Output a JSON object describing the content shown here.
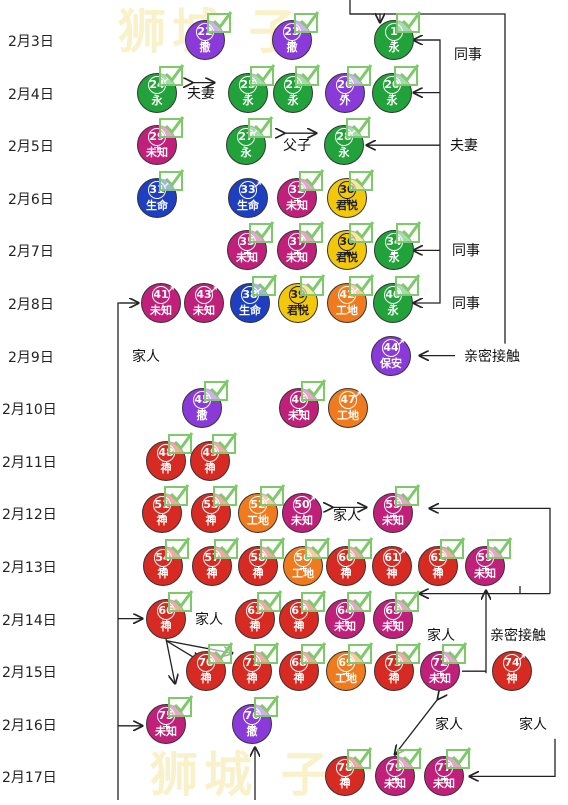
{
  "colors": {
    "green": "#22a23a",
    "purple": "#8a3ad8",
    "magenta": "#c0207a",
    "blue": "#1d3fc0",
    "yellow": "#f3c80a",
    "orange": "#f07a1e",
    "red": "#d62a22",
    "line": "#222222",
    "check": "#7ec96a"
  },
  "watermark": "狮城  子",
  "dates": [
    "2月3日",
    "2月4日",
    "2月5日",
    "2月6日",
    "2月7日",
    "2月8日",
    "2月9日",
    "2月10日",
    "2月11日",
    "2月12日",
    "2月13日",
    "2月14日",
    "2月15日",
    "2月16日",
    "2月17日"
  ],
  "cases": [
    {
      "num": "22",
      "label": "撤",
      "color": "purple",
      "sex": "f",
      "row": 0,
      "col": 205,
      "check": true
    },
    {
      "num": "23",
      "label": "撤",
      "color": "purple",
      "sex": "f",
      "row": 0,
      "col": 292,
      "check": true
    },
    {
      "num": "1",
      "label": "永",
      "color": "green",
      "sex": "f",
      "row": 0,
      "col": 394,
      "check": true
    },
    {
      "num": "24",
      "label": "永",
      "color": "green",
      "sex": "m",
      "row": 1,
      "col": 157,
      "check": true
    },
    {
      "num": "25",
      "label": "永",
      "color": "green",
      "sex": "f",
      "row": 1,
      "col": 248,
      "check": true
    },
    {
      "num": "21",
      "label": "永",
      "color": "green",
      "sex": "f",
      "row": 1,
      "col": 293,
      "check": true
    },
    {
      "num": "26",
      "label": "外",
      "color": "purple",
      "sex": "f",
      "row": 1,
      "col": 345,
      "check": true
    },
    {
      "num": "20",
      "label": "永",
      "color": "green",
      "sex": "f",
      "row": 1,
      "col": 392,
      "check": true
    },
    {
      "num": "29",
      "label": "未知",
      "color": "magenta",
      "sex": "f",
      "row": 2,
      "col": 157,
      "check": true
    },
    {
      "num": "27",
      "label": "永",
      "color": "green",
      "sex": "m",
      "row": 2,
      "col": 246,
      "check": true
    },
    {
      "num": "28",
      "label": "永",
      "color": "green",
      "sex": "m",
      "row": 2,
      "col": 344,
      "check": true
    },
    {
      "num": "31",
      "label": "生命",
      "color": "blue",
      "sex": "m",
      "row": 3,
      "col": 157,
      "check": true
    },
    {
      "num": "33",
      "label": "生命",
      "color": "blue",
      "sex": "m",
      "row": 3,
      "col": 248,
      "check": false
    },
    {
      "num": "32",
      "label": "未知",
      "color": "magenta",
      "sex": "f",
      "row": 3,
      "col": 297,
      "check": true
    },
    {
      "num": "30",
      "label": "君悦",
      "color": "yellow",
      "sex": "f",
      "row": 3,
      "col": 347,
      "check": true
    },
    {
      "num": "35",
      "label": "未知",
      "color": "magenta",
      "sex": "f",
      "row": 4,
      "col": 247,
      "check": true
    },
    {
      "num": "37",
      "label": "未知",
      "color": "magenta",
      "sex": "f",
      "row": 4,
      "col": 297,
      "check": true
    },
    {
      "num": "36",
      "label": "君悦",
      "color": "yellow",
      "sex": "f",
      "row": 4,
      "col": 347,
      "check": true
    },
    {
      "num": "34",
      "label": "永",
      "color": "green",
      "sex": "f",
      "row": 4,
      "col": 394,
      "check": true
    },
    {
      "num": "41",
      "label": "未知",
      "color": "magenta",
      "sex": "m",
      "row": 5,
      "col": 161,
      "check": false
    },
    {
      "num": "43",
      "label": "未知",
      "color": "magenta",
      "sex": "m",
      "row": 5,
      "col": 204,
      "check": false
    },
    {
      "num": "38",
      "label": "生命",
      "color": "blue",
      "sex": "m",
      "row": 5,
      "col": 250,
      "check": true
    },
    {
      "num": "39",
      "label": "君悦",
      "color": "yellow",
      "sex": "f",
      "row": 5,
      "col": 298,
      "check": true
    },
    {
      "num": "42",
      "label": "工地",
      "color": "orange",
      "sex": "m",
      "row": 5,
      "col": 347,
      "check": true
    },
    {
      "num": "40",
      "label": "永",
      "color": "green",
      "sex": "f",
      "row": 5,
      "col": 393,
      "check": true
    },
    {
      "num": "44",
      "label": "保安",
      "color": "purple",
      "sex": "m",
      "row": 6,
      "col": 391,
      "check": false
    },
    {
      "num": "45",
      "label": "撤",
      "color": "purple",
      "sex": "f",
      "row": 7,
      "col": 202,
      "check": true
    },
    {
      "num": "46",
      "label": "未知",
      "color": "magenta",
      "sex": "f",
      "row": 7,
      "col": 299,
      "check": true
    },
    {
      "num": "47",
      "label": "工地",
      "color": "orange",
      "sex": "m",
      "row": 7,
      "col": 348,
      "check": false
    },
    {
      "num": "48",
      "label": "神",
      "color": "red",
      "sex": "f",
      "row": 8,
      "col": 166,
      "check": true
    },
    {
      "num": "49",
      "label": "神",
      "color": "red",
      "sex": "f",
      "row": 8,
      "col": 210,
      "check": true
    },
    {
      "num": "51",
      "label": "神",
      "color": "red",
      "sex": "f",
      "row": 9,
      "col": 162,
      "check": true
    },
    {
      "num": "53",
      "label": "神",
      "color": "red",
      "sex": "f",
      "row": 9,
      "col": 211,
      "check": true
    },
    {
      "num": "52",
      "label": "工地",
      "color": "orange",
      "sex": "m",
      "row": 9,
      "col": 258,
      "check": true
    },
    {
      "num": "50",
      "label": "未知",
      "color": "magenta",
      "sex": "m",
      "row": 9,
      "col": 302,
      "check": false
    },
    {
      "num": "55",
      "label": "未知",
      "color": "magenta",
      "sex": "f",
      "row": 9,
      "col": 393,
      "check": true
    },
    {
      "num": "54",
      "label": "神",
      "color": "red",
      "sex": "f",
      "row": 10,
      "col": 163,
      "check": true
    },
    {
      "num": "57",
      "label": "神",
      "color": "red",
      "sex": "f",
      "row": 10,
      "col": 212,
      "check": true
    },
    {
      "num": "58",
      "label": "神",
      "color": "red",
      "sex": "f",
      "row": 10,
      "col": 258,
      "check": true
    },
    {
      "num": "56",
      "label": "工地",
      "color": "orange",
      "sex": "f",
      "row": 10,
      "col": 303,
      "check": true
    },
    {
      "num": "60",
      "label": "神",
      "color": "red",
      "sex": "f",
      "row": 10,
      "col": 346,
      "check": true
    },
    {
      "num": "61",
      "label": "神",
      "color": "red",
      "sex": "m",
      "row": 10,
      "col": 392,
      "check": false
    },
    {
      "num": "62",
      "label": "神",
      "color": "red",
      "sex": "f",
      "row": 10,
      "col": 438,
      "check": true
    },
    {
      "num": "59",
      "label": "未知",
      "color": "magenta",
      "sex": "f",
      "row": 10,
      "col": 485,
      "check": true
    },
    {
      "num": "66",
      "label": "神",
      "color": "red",
      "sex": "f",
      "row": 11,
      "col": 166,
      "check": true
    },
    {
      "num": "63",
      "label": "神",
      "color": "red",
      "sex": "f",
      "row": 11,
      "col": 255,
      "check": true
    },
    {
      "num": "67",
      "label": "神",
      "color": "red",
      "sex": "f",
      "row": 11,
      "col": 299,
      "check": true
    },
    {
      "num": "64",
      "label": "未知",
      "color": "magenta",
      "sex": "f",
      "row": 11,
      "col": 345,
      "check": true
    },
    {
      "num": "65",
      "label": "未知",
      "color": "magenta",
      "sex": "f",
      "row": 11,
      "col": 393,
      "check": true
    },
    {
      "num": "70",
      "label": "神",
      "color": "red",
      "sex": "f",
      "row": 12,
      "col": 206,
      "check": true
    },
    {
      "num": "71",
      "label": "神",
      "color": "red",
      "sex": "f",
      "row": 12,
      "col": 252,
      "check": true
    },
    {
      "num": "68",
      "label": "神",
      "color": "red",
      "sex": "f",
      "row": 12,
      "col": 299,
      "check": true
    },
    {
      "num": "69",
      "label": "工地",
      "color": "orange",
      "sex": "f",
      "row": 12,
      "col": 346,
      "check": true
    },
    {
      "num": "73",
      "label": "神",
      "color": "red",
      "sex": "f",
      "row": 12,
      "col": 394,
      "check": true
    },
    {
      "num": "72",
      "label": "未知",
      "color": "magenta",
      "sex": "f",
      "row": 12,
      "col": 440,
      "check": true
    },
    {
      "num": "74",
      "label": "神",
      "color": "red",
      "sex": "m",
      "row": 12,
      "col": 512,
      "check": false
    },
    {
      "num": "75",
      "label": "未知",
      "color": "magenta",
      "sex": "f",
      "row": 13,
      "col": 166,
      "check": true
    },
    {
      "num": "76",
      "label": "撤",
      "color": "purple",
      "sex": "f",
      "row": 13,
      "col": 252,
      "check": true
    },
    {
      "num": "78",
      "label": "神",
      "color": "red",
      "sex": "f",
      "row": 14,
      "col": 345,
      "check": true
    },
    {
      "num": "79",
      "label": "未知",
      "color": "magenta",
      "sex": "f",
      "row": 14,
      "col": 395,
      "check": true
    },
    {
      "num": "77",
      "label": "未知",
      "color": "magenta",
      "sex": "f",
      "row": 14,
      "col": 444,
      "check": true
    }
  ],
  "labels": [
    {
      "name": "label-fuqi-1",
      "text": "夫妻",
      "row": 1,
      "col": 203,
      "dy": 0
    },
    {
      "name": "label-fuzi",
      "text": "父子",
      "row": 2,
      "col": 299,
      "dy": 0
    },
    {
      "name": "label-tongshi-1",
      "text": "同事",
      "row": 0,
      "col": 470,
      "dy": 14
    },
    {
      "name": "label-fuqi-2",
      "text": "夫妻",
      "row": 2,
      "col": 466,
      "dy": 0
    },
    {
      "name": "label-tongshi-2",
      "text": "同事",
      "row": 4,
      "col": 468,
      "dy": 0
    },
    {
      "name": "label-tongshi-3",
      "text": "同事",
      "row": 5,
      "col": 468,
      "dy": 0
    },
    {
      "name": "label-jiaren-1",
      "text": "家人",
      "row": 6,
      "col": 148,
      "dy": 0
    },
    {
      "name": "label-qinmi-1",
      "text": "亲密接触",
      "row": 6,
      "col": 496,
      "dy": 0
    },
    {
      "name": "label-jiaren-2",
      "text": "家人",
      "row": 9,
      "col": 349,
      "dy": 2
    },
    {
      "name": "label-jiaren-3",
      "text": "家人",
      "row": 11,
      "col": 211,
      "dy": 0
    },
    {
      "name": "label-jiaren-4",
      "text": "家人",
      "row": 11,
      "col": 443,
      "dy": 16
    },
    {
      "name": "label-qinmi-2",
      "text": "亲密接触",
      "row": 11,
      "col": 522,
      "dy": 16
    },
    {
      "name": "label-jiaren-5",
      "text": "家人",
      "row": 13,
      "col": 451,
      "dy": 0
    },
    {
      "name": "label-jiaren-6",
      "text": "家人",
      "row": 13,
      "col": 535,
      "dy": 0
    }
  ]
}
